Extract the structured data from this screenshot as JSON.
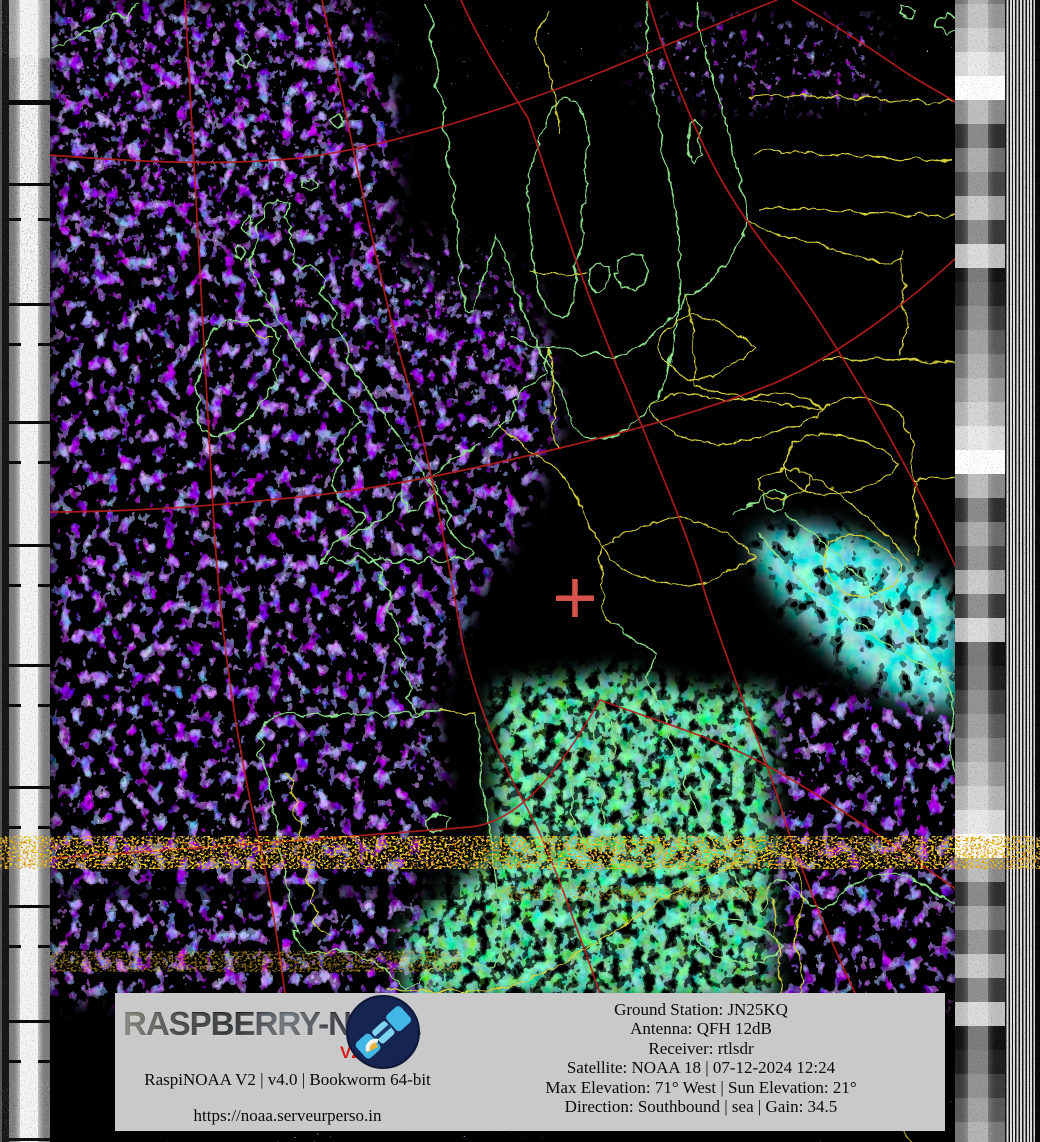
{
  "image_kind": "NOAA APT weather satellite capture with map overlay",
  "footer": {
    "logo_text": "RASPBERRY-NOAA",
    "logo_version": "V2",
    "badge_icon": "satellite-icon",
    "build_line": "RaspiNOAA V2 | v4.0 | Bookworm 64-bit",
    "url_line": "https://noaa.serveurperso.in",
    "info_lines": [
      "Ground Station: JN25KQ",
      "Antenna: QFH 12dB",
      "Receiver: rtlsdr",
      "Satellite: NOAA 18 | 07-12-2024 12:24",
      "Max Elevation: 71° West | Sun Elevation: 21°",
      "Direction: Southbound | sea | Gain: 34.5"
    ]
  },
  "map_overlay": {
    "ground_station_marker": "red-cross-icon",
    "colors": {
      "background": "#000000",
      "coastline_green": "#8ce08a",
      "border_yellow": "#d8d23c",
      "graticule_red": "#b81e1e",
      "marker_red": "#d8524c",
      "banner_gray": "#c9c9c9",
      "precip_purple": "#7a1fe8",
      "precip_blue": "#2a3cff",
      "precip_cyan": "#19e8e0",
      "precip_green": "#3ed23e",
      "interference_orange": "#ff9121"
    }
  }
}
